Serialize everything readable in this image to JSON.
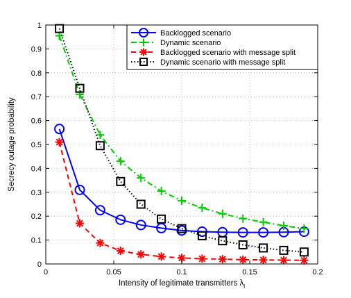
{
  "chart_data": {
    "type": "line",
    "title": "",
    "xlabel": "Intensity of legitimate transmitters λ",
    "xlabel_subscript": "l",
    "ylabel": "Secrecy outage probability",
    "xlim": [
      0,
      0.2
    ],
    "ylim": [
      0,
      1
    ],
    "xticks": [
      "0",
      "0.05",
      "0.1",
      "0.15",
      "0.2"
    ],
    "yticks": [
      "0",
      "0.1",
      "0.2",
      "0.3",
      "0.4",
      "0.5",
      "0.6",
      "0.7",
      "0.8",
      "0.9",
      "1"
    ],
    "grid": true,
    "legend_position": "top-right",
    "x": [
      0.01,
      0.025,
      0.04,
      0.055,
      0.07,
      0.085,
      0.1,
      0.115,
      0.13,
      0.145,
      0.16,
      0.175,
      0.19
    ],
    "series": [
      {
        "name": "Backlogged scenario",
        "color": "#0000ff",
        "line_style": "solid",
        "marker": "circle",
        "x": [
          0.01,
          0.025,
          0.04,
          0.055,
          0.07,
          0.085,
          0.1,
          0.115,
          0.13,
          0.145,
          0.16,
          0.175,
          0.19
        ],
        "values": [
          0.565,
          0.31,
          0.225,
          0.185,
          0.163,
          0.15,
          0.14,
          0.135,
          0.133,
          0.132,
          0.132,
          0.133,
          0.135
        ]
      },
      {
        "name": "Dynamic scenario",
        "color": "#00cc00",
        "line_style": "dashdot",
        "marker": "plus",
        "x": [
          0.01,
          0.025,
          0.04,
          0.055,
          0.07,
          0.085,
          0.1,
          0.115,
          0.13,
          0.145,
          0.16,
          0.175,
          0.19
        ],
        "values": [
          0.955,
          0.71,
          0.54,
          0.43,
          0.36,
          0.305,
          0.265,
          0.235,
          0.21,
          0.19,
          0.175,
          0.16,
          0.148
        ]
      },
      {
        "name": "Backlogged scenario with message split",
        "color": "#ff0000",
        "line_style": "dashed",
        "marker": "asterisk",
        "x": [
          0.01,
          0.025,
          0.04,
          0.055,
          0.07,
          0.085,
          0.1,
          0.115,
          0.13,
          0.145,
          0.16,
          0.175,
          0.19
        ],
        "values": [
          0.51,
          0.17,
          0.088,
          0.055,
          0.04,
          0.031,
          0.025,
          0.022,
          0.02,
          0.018,
          0.017,
          0.016,
          0.015
        ]
      },
      {
        "name": "Dynamic scenario with message split",
        "color": "#000000",
        "line_style": "dotted",
        "marker": "square",
        "x": [
          0.01,
          0.025,
          0.04,
          0.055,
          0.07,
          0.085,
          0.1,
          0.115,
          0.13,
          0.145,
          0.16,
          0.175,
          0.19
        ],
        "values": [
          0.985,
          0.735,
          0.495,
          0.345,
          0.25,
          0.188,
          0.148,
          0.118,
          0.097,
          0.08,
          0.067,
          0.057,
          0.05
        ]
      }
    ]
  }
}
